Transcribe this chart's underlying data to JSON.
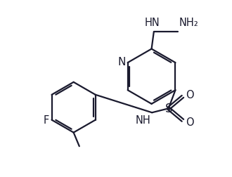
{
  "background_color": "#ffffff",
  "line_color": "#1a1a2e",
  "line_width": 1.6,
  "font_size": 10.5,
  "font_color": "#1a1a2e",
  "fig_w": 3.3,
  "fig_h": 2.53,
  "dpi": 100,
  "xlim": [
    0,
    10
  ],
  "ylim": [
    0,
    7.67
  ]
}
